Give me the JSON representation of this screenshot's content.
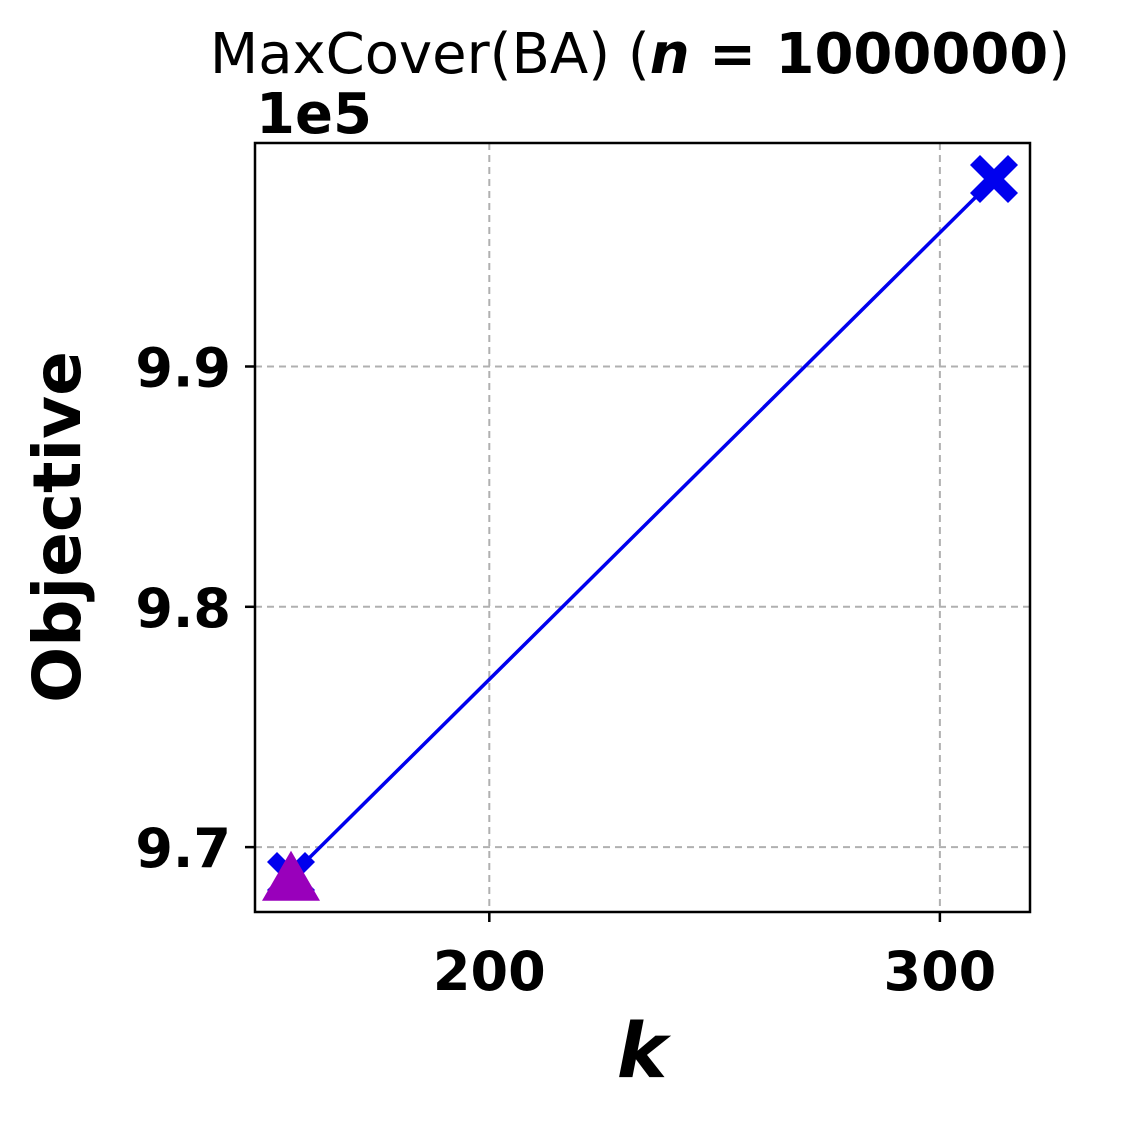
{
  "chart_data": {
    "type": "line",
    "title": {
      "prefix": "MaxCover(BA) (",
      "variable": "n",
      "equals": " = ",
      "value": "1000000",
      "suffix": ")"
    },
    "xlabel": "k",
    "ylabel": "Objective",
    "y_offset_label": "1e5",
    "y_scale_factor": 100000,
    "xlim": [
      148,
      320
    ],
    "ylim": [
      9.673,
      9.993
    ],
    "x_ticks": [
      200,
      300
    ],
    "y_ticks": [
      9.7,
      9.8,
      9.9
    ],
    "grid": true,
    "legend": "none",
    "series": [
      {
        "color": "#0000ee",
        "marker": "X",
        "line": true,
        "points": [
          {
            "x": 156,
            "y": 9.688
          },
          {
            "x": 312,
            "y": 9.978
          }
        ]
      },
      {
        "color": "#9900bb",
        "marker": "triangle",
        "line": false,
        "points": [
          {
            "x": 156,
            "y": 9.686
          }
        ]
      }
    ]
  }
}
